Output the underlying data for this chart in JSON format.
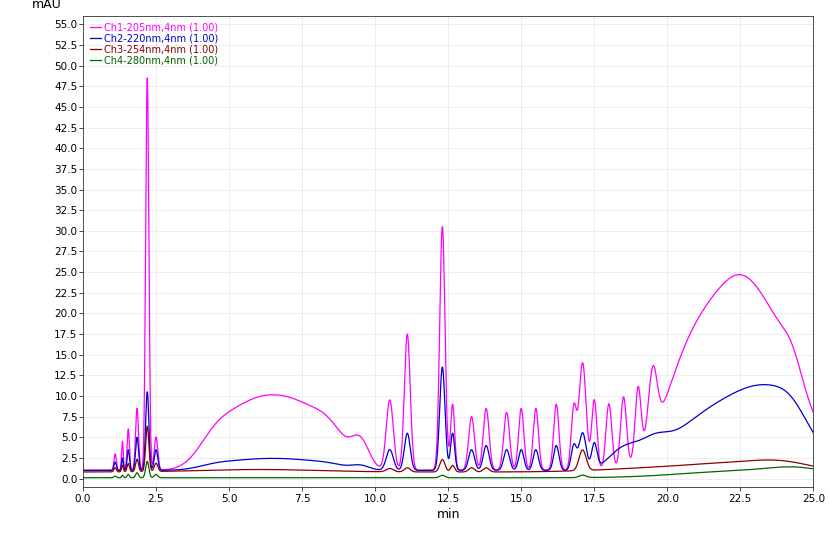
{
  "title": "",
  "ylabel": "mAU",
  "xlabel": "min",
  "xlim": [
    0.0,
    25.0
  ],
  "ylim": [
    -1.0,
    56.0
  ],
  "yticks": [
    0.0,
    2.5,
    5.0,
    7.5,
    10.0,
    12.5,
    15.0,
    17.5,
    20.0,
    22.5,
    25.0,
    27.5,
    30.0,
    32.5,
    35.0,
    37.5,
    40.0,
    42.5,
    45.0,
    47.5,
    50.0,
    52.5,
    55.0
  ],
  "xticks": [
    0.0,
    2.5,
    5.0,
    7.5,
    10.0,
    12.5,
    15.0,
    17.5,
    20.0,
    22.5,
    25.0
  ],
  "channels": [
    {
      "label": "Ch1-205nm,4nm (1.00)",
      "color": "#ff00ff"
    },
    {
      "label": "Ch2-220nm,4nm (1.00)",
      "color": "#0000cd"
    },
    {
      "label": "Ch3-254nm,4nm (1.00)",
      "color": "#8b0000"
    },
    {
      "label": "Ch4-280nm,4nm (1.00)",
      "color": "#006400"
    }
  ],
  "background": "#ffffff",
  "grid_color": "#d8d8d8"
}
